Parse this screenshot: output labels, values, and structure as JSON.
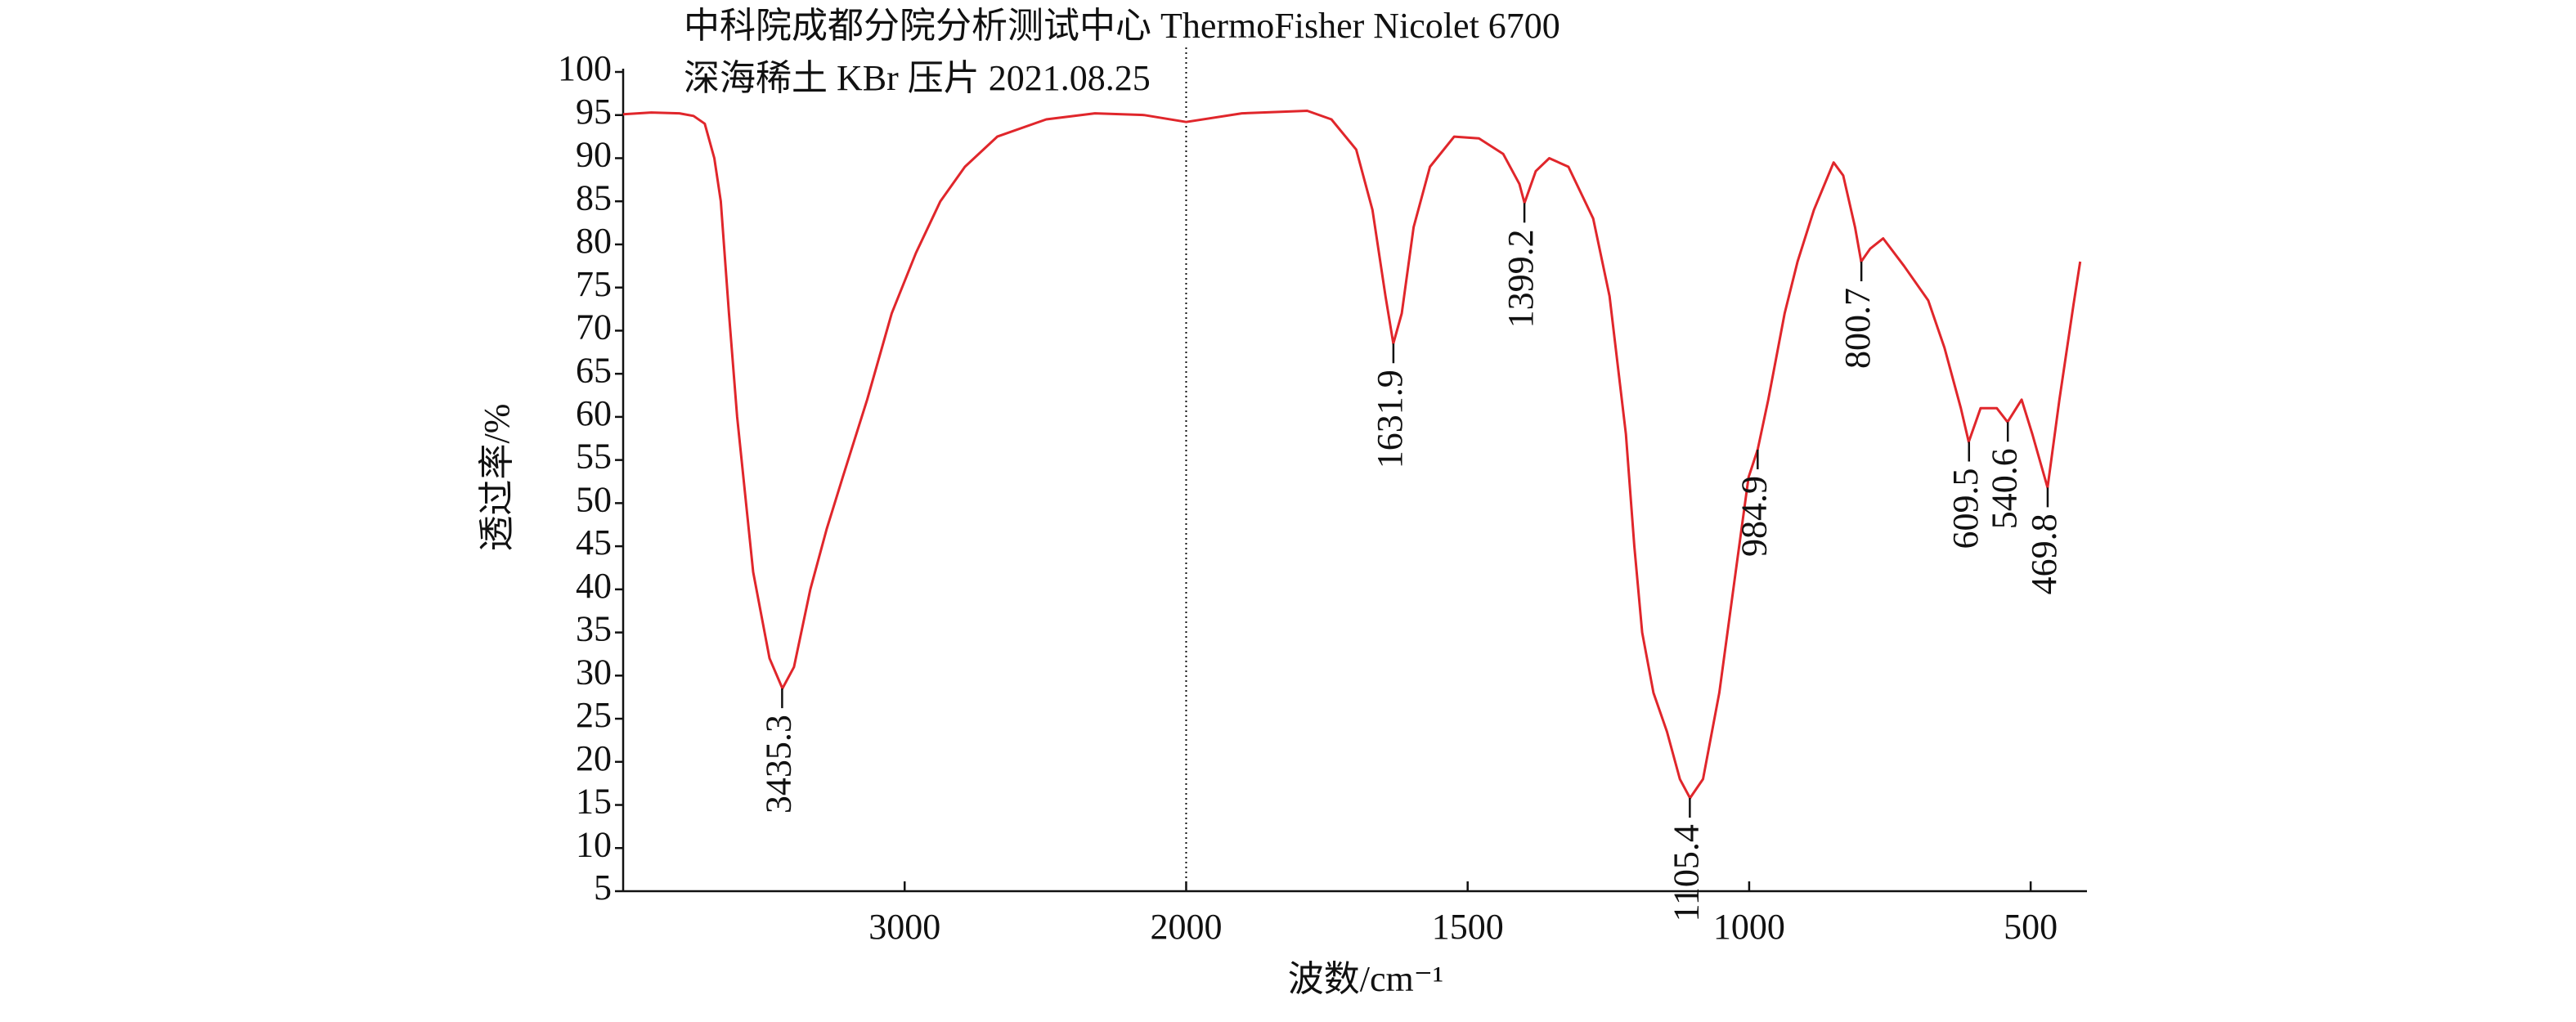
{
  "chart_data": {
    "type": "line",
    "title": "中科院成都分院分析测试中心 ThermoFisher Nicolet 6700",
    "subtitle": "深海稀土  KBr 压片 2021.08.25",
    "x_label": "波数/cm⁻¹",
    "y_label": "透过率/%",
    "color": "#e0262b",
    "xlim": [
      4000,
      400
    ],
    "x_scale_change": 2000,
    "xticks": [
      3000,
      2000,
      1500,
      1000,
      500
    ],
    "ylim": [
      5,
      100
    ],
    "yticks": [
      5,
      10,
      15,
      20,
      25,
      30,
      35,
      40,
      45,
      50,
      55,
      60,
      65,
      70,
      75,
      80,
      85,
      90,
      95,
      100
    ],
    "x": [
      4000,
      3900,
      3800,
      3750,
      3710,
      3676,
      3653,
      3624,
      3595,
      3538,
      3480,
      3434,
      3393,
      3335,
      3277,
      3220,
      3133,
      3046,
      2960,
      2873,
      2786,
      2671,
      2497,
      2324,
      2150,
      2000,
      1901,
      1785,
      1742,
      1698,
      1669,
      1646,
      1632,
      1617,
      1596,
      1567,
      1524,
      1480,
      1437,
      1408,
      1399,
      1379,
      1355,
      1321,
      1277,
      1248,
      1219,
      1204,
      1190,
      1170,
      1146,
      1123,
      1105,
      1082,
      1053,
      1024,
      1001,
      985,
      966,
      937,
      914,
      885,
      850,
      833,
      812,
      801,
      785,
      762,
      725,
      682,
      653,
      624,
      610,
      589,
      560,
      541,
      516,
      497,
      470,
      449,
      424,
      412
    ],
    "values": [
      95.1,
      95.3,
      95.2,
      94.9,
      94,
      90,
      85,
      72,
      60,
      42,
      32,
      28.5,
      31,
      40,
      47,
      53,
      62,
      72,
      79,
      85,
      89,
      92.5,
      94.5,
      95.2,
      95,
      94.2,
      95.2,
      95.5,
      94.5,
      91,
      84,
      74,
      68.5,
      72,
      82,
      89,
      92.5,
      92.3,
      90.5,
      87,
      84.8,
      88.5,
      90,
      89,
      83,
      74,
      58,
      45,
      35,
      28,
      23.5,
      18,
      15.8,
      18,
      28,
      42,
      53,
      56.2,
      62,
      72,
      78,
      84,
      89.5,
      88,
      82,
      78,
      79.5,
      80.7,
      77.5,
      73.5,
      68,
      61,
      57.1,
      61,
      61,
      59.4,
      62,
      58,
      51.8,
      62,
      73,
      78
    ],
    "peaks": [
      {
        "x": 3435.3,
        "y": 28.5
      },
      {
        "x": 1631.9,
        "y": 68.5
      },
      {
        "x": 1399.2,
        "y": 84.8
      },
      {
        "x": 1105.4,
        "y": 15.8
      },
      {
        "x": 984.9,
        "y": 56.2
      },
      {
        "x": 800.7,
        "y": 78
      },
      {
        "x": 609.5,
        "y": 57.1
      },
      {
        "x": 540.6,
        "y": 59.4
      },
      {
        "x": 469.8,
        "y": 51.8
      }
    ]
  }
}
